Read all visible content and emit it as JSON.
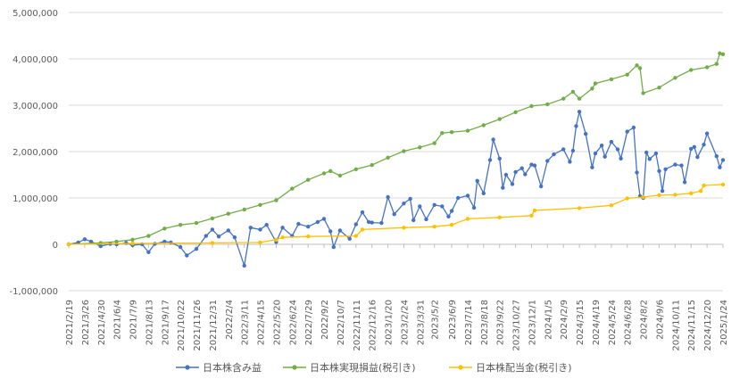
{
  "chart_data": {
    "type": "line",
    "title": "",
    "xlabel": "",
    "ylabel": "",
    "ylim": [
      -1000000,
      5000000
    ],
    "yticks": [
      -1000000,
      0,
      1000000,
      2000000,
      3000000,
      4000000,
      5000000
    ],
    "ytick_labels": [
      "-1,000,000",
      "0",
      "1,000,000",
      "2,000,000",
      "3,000,000",
      "4,000,000",
      "5,000,000"
    ],
    "negative_tick_color": "#ff0000",
    "grid": true,
    "legend_position": "bottom",
    "x_tick_labels": [
      "2021/2/19",
      "2021/3/26",
      "2021/4/30",
      "2021/6/4",
      "2021/7/9",
      "2021/8/13",
      "2021/9/17",
      "2021/10/22",
      "2021/11/26",
      "2021/12/31",
      "2022/2/4",
      "2022/3/11",
      "2022/4/15",
      "2022/5/20",
      "2022/6/24",
      "2022/7/29",
      "2022/9/2",
      "2022/10/7",
      "2022/11/11",
      "2022/12/16",
      "2023/1/20",
      "2023/2/24",
      "2023/3/31",
      "2023/5/2",
      "2023/6/9",
      "2023/7/14",
      "2023/8/18",
      "2023/9/22",
      "2023/10/27",
      "2023/12/1",
      "2024/1/5",
      "2024/2/9",
      "2024/3/15",
      "2024/4/19",
      "2024/5/24",
      "2024/6/28",
      "2024/8/2",
      "2024/9/6",
      "2024/10/11",
      "2024/11/15",
      "2024/12/20",
      "2025/1/24"
    ],
    "series": [
      {
        "name": "日本株含み益",
        "color": "#4472c4",
        "points": [
          [
            "2021/2/19",
            0
          ],
          [
            "2021/3/12",
            40000
          ],
          [
            "2021/3/26",
            110000
          ],
          [
            "2021/4/9",
            60000
          ],
          [
            "2021/4/30",
            -40000
          ],
          [
            "2021/5/21",
            10000
          ],
          [
            "2021/6/4",
            0
          ],
          [
            "2021/6/25",
            30000
          ],
          [
            "2021/7/9",
            -20000
          ],
          [
            "2021/7/30",
            0
          ],
          [
            "2021/8/13",
            -170000
          ],
          [
            "2021/8/27",
            10000
          ],
          [
            "2021/9/17",
            60000
          ],
          [
            "2021/10/1",
            40000
          ],
          [
            "2021/10/22",
            -60000
          ],
          [
            "2021/11/5",
            -240000
          ],
          [
            "2021/11/26",
            -100000
          ],
          [
            "2021/12/17",
            180000
          ],
          [
            "2021/12/31",
            320000
          ],
          [
            "2022/1/14",
            170000
          ],
          [
            "2022/2/4",
            300000
          ],
          [
            "2022/2/18",
            150000
          ],
          [
            "2022/3/11",
            -460000
          ],
          [
            "2022/3/25",
            360000
          ],
          [
            "2022/4/15",
            320000
          ],
          [
            "2022/4/29",
            420000
          ],
          [
            "2022/5/20",
            50000
          ],
          [
            "2022/6/3",
            360000
          ],
          [
            "2022/6/24",
            180000
          ],
          [
            "2022/7/8",
            440000
          ],
          [
            "2022/7/29",
            380000
          ],
          [
            "2022/8/19",
            480000
          ],
          [
            "2022/9/2",
            550000
          ],
          [
            "2022/9/16",
            280000
          ],
          [
            "2022/9/23",
            -60000
          ],
          [
            "2022/10/7",
            300000
          ],
          [
            "2022/10/28",
            120000
          ],
          [
            "2022/11/11",
            430000
          ],
          [
            "2022/11/25",
            690000
          ],
          [
            "2022/12/9",
            480000
          ],
          [
            "2022/12/16",
            470000
          ],
          [
            "2023/1/6",
            460000
          ],
          [
            "2023/1/20",
            1020000
          ],
          [
            "2023/2/3",
            650000
          ],
          [
            "2023/2/24",
            880000
          ],
          [
            "2023/3/10",
            980000
          ],
          [
            "2023/3/17",
            520000
          ],
          [
            "2023/3/31",
            820000
          ],
          [
            "2023/4/14",
            540000
          ],
          [
            "2023/5/2",
            850000
          ],
          [
            "2023/5/19",
            820000
          ],
          [
            "2023/6/2",
            600000
          ],
          [
            "2023/6/9",
            720000
          ],
          [
            "2023/6/23",
            1000000
          ],
          [
            "2023/7/14",
            1050000
          ],
          [
            "2023/7/28",
            790000
          ],
          [
            "2023/8/4",
            1370000
          ],
          [
            "2023/8/18",
            1100000
          ],
          [
            "2023/9/1",
            1820000
          ],
          [
            "2023/9/8",
            2260000
          ],
          [
            "2023/9/22",
            1850000
          ],
          [
            "2023/9/29",
            1220000
          ],
          [
            "2023/10/6",
            1500000
          ],
          [
            "2023/10/20",
            1300000
          ],
          [
            "2023/10/27",
            1560000
          ],
          [
            "2023/11/10",
            1640000
          ],
          [
            "2023/11/17",
            1510000
          ],
          [
            "2023/12/1",
            1720000
          ],
          [
            "2023/12/8",
            1700000
          ],
          [
            "2023/12/22",
            1250000
          ],
          [
            "2024/1/5",
            1800000
          ],
          [
            "2024/1/19",
            1940000
          ],
          [
            "2024/2/9",
            2050000
          ],
          [
            "2024/2/23",
            1780000
          ],
          [
            "2024/3/1",
            2020000
          ],
          [
            "2024/3/8",
            2550000
          ],
          [
            "2024/3/15",
            2860000
          ],
          [
            "2024/3/29",
            2380000
          ],
          [
            "2024/4/12",
            1660000
          ],
          [
            "2024/4/19",
            1960000
          ],
          [
            "2024/5/3",
            2130000
          ],
          [
            "2024/5/10",
            1890000
          ],
          [
            "2024/5/24",
            2210000
          ],
          [
            "2024/6/7",
            2050000
          ],
          [
            "2024/6/14",
            1850000
          ],
          [
            "2024/6/28",
            2430000
          ],
          [
            "2024/7/12",
            2520000
          ],
          [
            "2024/7/19",
            1550000
          ],
          [
            "2024/7/26",
            1040000
          ],
          [
            "2024/8/2",
            1000000
          ],
          [
            "2024/8/9",
            1980000
          ],
          [
            "2024/8/16",
            1840000
          ],
          [
            "2024/8/30",
            1960000
          ],
          [
            "2024/9/6",
            1580000
          ],
          [
            "2024/9/13",
            1150000
          ],
          [
            "2024/9/20",
            1620000
          ],
          [
            "2024/10/11",
            1720000
          ],
          [
            "2024/10/25",
            1700000
          ],
          [
            "2024/11/1",
            1340000
          ],
          [
            "2024/11/15",
            2060000
          ],
          [
            "2024/11/22",
            2100000
          ],
          [
            "2024/11/29",
            1880000
          ],
          [
            "2024/12/13",
            2150000
          ],
          [
            "2024/12/20",
            2390000
          ],
          [
            "2025/1/10",
            1900000
          ],
          [
            "2025/1/17",
            1660000
          ],
          [
            "2025/1/24",
            1820000
          ]
        ]
      },
      {
        "name": "日本株実現損益(税引き)",
        "color": "#70ad47",
        "points": [
          [
            "2021/2/19",
            0
          ],
          [
            "2021/4/30",
            30000
          ],
          [
            "2021/6/4",
            60000
          ],
          [
            "2021/7/9",
            100000
          ],
          [
            "2021/8/13",
            180000
          ],
          [
            "2021/9/17",
            340000
          ],
          [
            "2021/10/22",
            420000
          ],
          [
            "2021/11/26",
            460000
          ],
          [
            "2021/12/31",
            560000
          ],
          [
            "2022/2/4",
            660000
          ],
          [
            "2022/3/11",
            750000
          ],
          [
            "2022/4/15",
            850000
          ],
          [
            "2022/5/20",
            950000
          ],
          [
            "2022/6/24",
            1200000
          ],
          [
            "2022/7/29",
            1390000
          ],
          [
            "2022/9/2",
            1530000
          ],
          [
            "2022/9/16",
            1580000
          ],
          [
            "2022/10/7",
            1480000
          ],
          [
            "2022/11/11",
            1620000
          ],
          [
            "2022/12/16",
            1710000
          ],
          [
            "2023/1/20",
            1870000
          ],
          [
            "2023/2/24",
            2010000
          ],
          [
            "2023/3/31",
            2090000
          ],
          [
            "2023/5/2",
            2180000
          ],
          [
            "2023/5/19",
            2400000
          ],
          [
            "2023/6/9",
            2420000
          ],
          [
            "2023/7/14",
            2450000
          ],
          [
            "2023/8/18",
            2570000
          ],
          [
            "2023/9/22",
            2700000
          ],
          [
            "2023/10/27",
            2850000
          ],
          [
            "2023/12/1",
            2980000
          ],
          [
            "2024/1/5",
            3020000
          ],
          [
            "2024/2/9",
            3140000
          ],
          [
            "2024/3/1",
            3290000
          ],
          [
            "2024/3/15",
            3140000
          ],
          [
            "2024/4/12",
            3360000
          ],
          [
            "2024/4/19",
            3470000
          ],
          [
            "2024/5/24",
            3560000
          ],
          [
            "2024/6/28",
            3660000
          ],
          [
            "2024/7/19",
            3860000
          ],
          [
            "2024/7/26",
            3800000
          ],
          [
            "2024/8/2",
            3260000
          ],
          [
            "2024/9/6",
            3380000
          ],
          [
            "2024/10/11",
            3590000
          ],
          [
            "2024/11/15",
            3760000
          ],
          [
            "2024/12/20",
            3820000
          ],
          [
            "2025/1/10",
            3890000
          ],
          [
            "2025/1/17",
            4120000
          ],
          [
            "2025/1/24",
            4100000
          ]
        ]
      },
      {
        "name": "日本株配当金(税引き)",
        "color": "#ffc000",
        "points": [
          [
            "2021/2/19",
            0
          ],
          [
            "2021/7/9",
            20000
          ],
          [
            "2021/12/31",
            30000
          ],
          [
            "2022/4/15",
            40000
          ],
          [
            "2022/5/20",
            100000
          ],
          [
            "2022/6/3",
            150000
          ],
          [
            "2022/7/29",
            170000
          ],
          [
            "2022/11/11",
            180000
          ],
          [
            "2022/11/25",
            320000
          ],
          [
            "2023/2/24",
            360000
          ],
          [
            "2023/5/2",
            380000
          ],
          [
            "2023/6/9",
            420000
          ],
          [
            "2023/7/14",
            550000
          ],
          [
            "2023/9/22",
            580000
          ],
          [
            "2023/12/1",
            620000
          ],
          [
            "2023/12/8",
            730000
          ],
          [
            "2024/3/15",
            780000
          ],
          [
            "2024/5/24",
            840000
          ],
          [
            "2024/6/28",
            990000
          ],
          [
            "2024/8/2",
            1020000
          ],
          [
            "2024/9/6",
            1060000
          ],
          [
            "2024/10/11",
            1070000
          ],
          [
            "2024/11/15",
            1100000
          ],
          [
            "2024/12/6",
            1150000
          ],
          [
            "2024/12/13",
            1270000
          ],
          [
            "2025/1/24",
            1290000
          ]
        ]
      }
    ]
  }
}
